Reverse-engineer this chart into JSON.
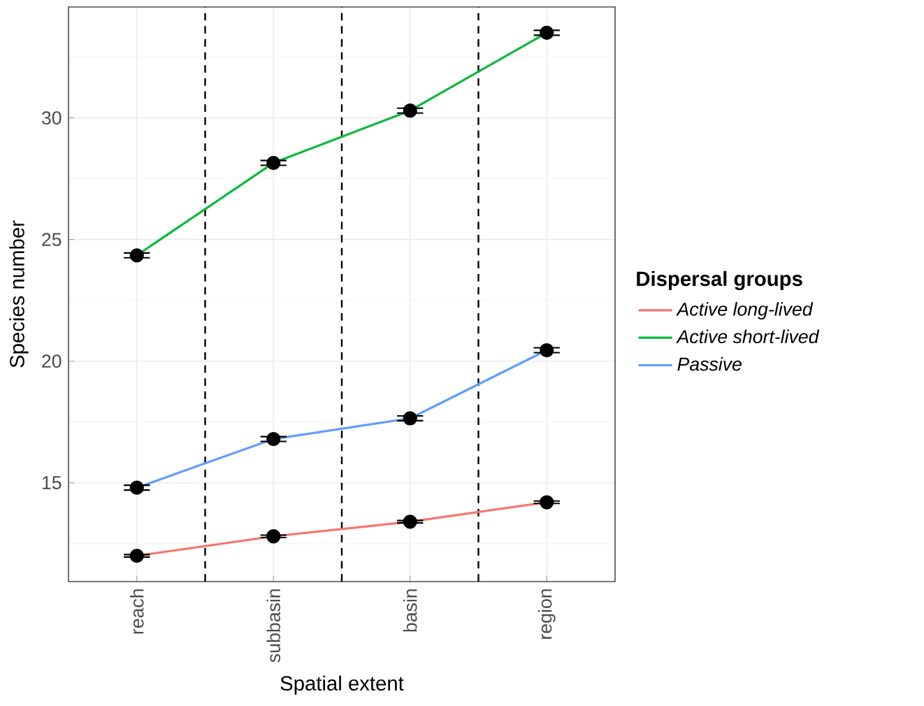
{
  "chart_data": {
    "type": "line",
    "xlabel": "Spatial extent",
    "ylabel": "Species number",
    "legend_title": "Dispersal groups",
    "categories": [
      "reach",
      "subbasin",
      "basin",
      "region"
    ],
    "series": [
      {
        "name": "Active long-lived",
        "color": "#f8766d",
        "values": [
          12.0,
          12.8,
          13.4,
          14.2
        ],
        "errors": [
          0.05,
          0.05,
          0.05,
          0.05
        ]
      },
      {
        "name": "Active short-lived",
        "color": "#00ba38",
        "values": [
          24.35,
          28.15,
          30.3,
          33.5
        ],
        "errors": [
          0.1,
          0.1,
          0.1,
          0.1
        ]
      },
      {
        "name": "Passive",
        "color": "#619cff",
        "values": [
          14.8,
          16.8,
          17.65,
          20.45
        ],
        "errors": [
          0.1,
          0.1,
          0.1,
          0.1
        ]
      }
    ],
    "ylim": [
      10.94,
      34.56
    ],
    "yticks": [
      15,
      20,
      25,
      30
    ],
    "grid": true,
    "legend": "right",
    "marker": "circle",
    "line_style": "solid"
  }
}
